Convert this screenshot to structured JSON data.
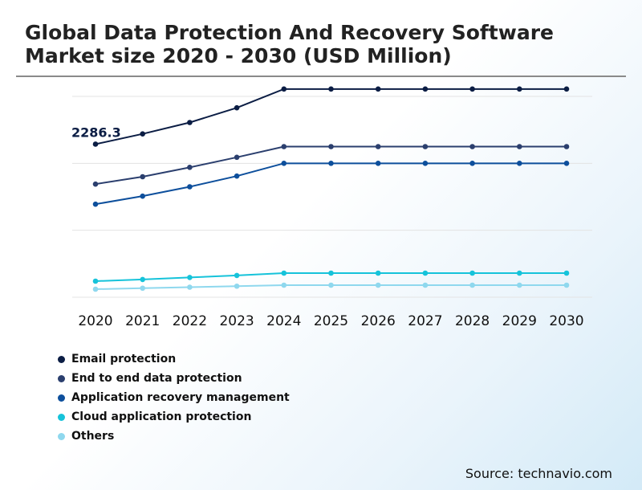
{
  "chart_data": {
    "type": "line",
    "title": "Global Data Protection And Recovery Software Market size 2020 - 2030 (USD Million)",
    "x": [
      "2020",
      "2021",
      "2022",
      "2023",
      "2024",
      "2025",
      "2026",
      "2027",
      "2028",
      "2029",
      "2030"
    ],
    "ylim": [
      0,
      3000
    ],
    "grid": true,
    "y_axis_visible": false,
    "legend_position": "bottom-left",
    "annotations": [
      {
        "series": "Email protection",
        "x": "2020",
        "text": "2286.3"
      }
    ],
    "series": [
      {
        "name": "Email protection",
        "color": "#0b1d44",
        "values": [
          2286.3,
          2440,
          2610,
          2830,
          3110,
          3110,
          3110,
          3110,
          3110,
          3110,
          3110
        ]
      },
      {
        "name": "End to end data protection",
        "color": "#2b3f6e",
        "values": [
          1690,
          1800,
          1940,
          2090,
          2250,
          2250,
          2250,
          2250,
          2250,
          2250,
          2250
        ]
      },
      {
        "name": "Application recovery management",
        "color": "#0d4f9c",
        "values": [
          1390,
          1510,
          1650,
          1810,
          2000,
          2000,
          2000,
          2000,
          2000,
          2000,
          2000
        ]
      },
      {
        "name": "Cloud application protection",
        "color": "#16c3da",
        "values": [
          240,
          265,
          295,
          325,
          360,
          360,
          360,
          360,
          360,
          360,
          360
        ]
      },
      {
        "name": "Others",
        "color": "#8fd8ee",
        "values": [
          120,
          135,
          150,
          165,
          180,
          180,
          180,
          180,
          180,
          180,
          180
        ]
      }
    ]
  },
  "source": "Source: technavio.com"
}
